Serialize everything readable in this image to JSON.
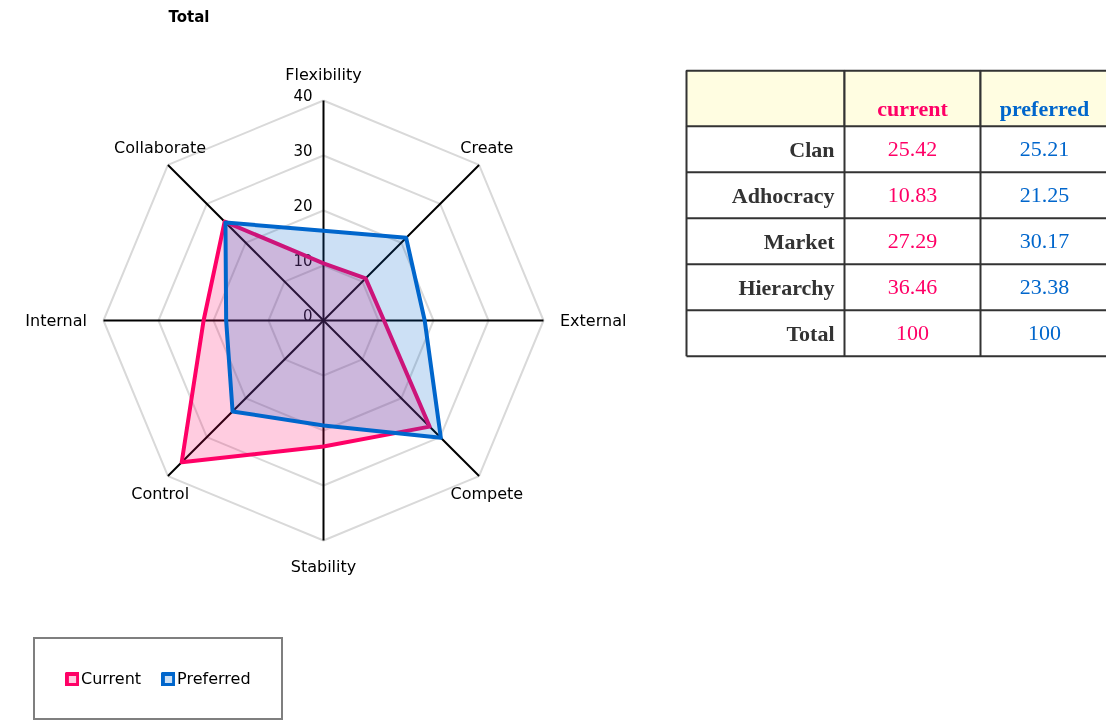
{
  "chart_data": [
    {
      "type": "radar",
      "title": "Total",
      "categories": [
        "Flexibility",
        "Create",
        "External",
        "Compete",
        "Stability",
        "Control",
        "Internal",
        "Collaborate"
      ],
      "series": [
        {
          "name": "Current",
          "color": "#ff0066",
          "values": [
            10.4,
            10.83,
            11.0,
            27.29,
            22.9,
            36.46,
            21.8,
            25.42
          ]
        },
        {
          "name": "Preferred",
          "color": "#0066cc",
          "values": [
            16.3,
            21.25,
            18.4,
            30.17,
            19.1,
            23.38,
            17.7,
            25.21
          ]
        }
      ],
      "ylim": [
        0,
        40
      ],
      "yticks": [
        0,
        10,
        20,
        30,
        40
      ],
      "grid": true,
      "legend": "bottom left"
    },
    {
      "type": "other",
      "categories": [
        "Clan",
        "Adhocracy",
        "Market",
        "Hierarchy",
        "Total"
      ],
      "series": [
        {
          "name": "current",
          "color": "#ff0066",
          "values": [
            25.42,
            10.83,
            27.29,
            36.46,
            100
          ]
        },
        {
          "name": "preferred",
          "color": "#0066cc",
          "values": [
            25.21,
            21.25,
            30.17,
            23.38,
            100
          ]
        }
      ],
      "data_labels": true
    }
  ]
}
